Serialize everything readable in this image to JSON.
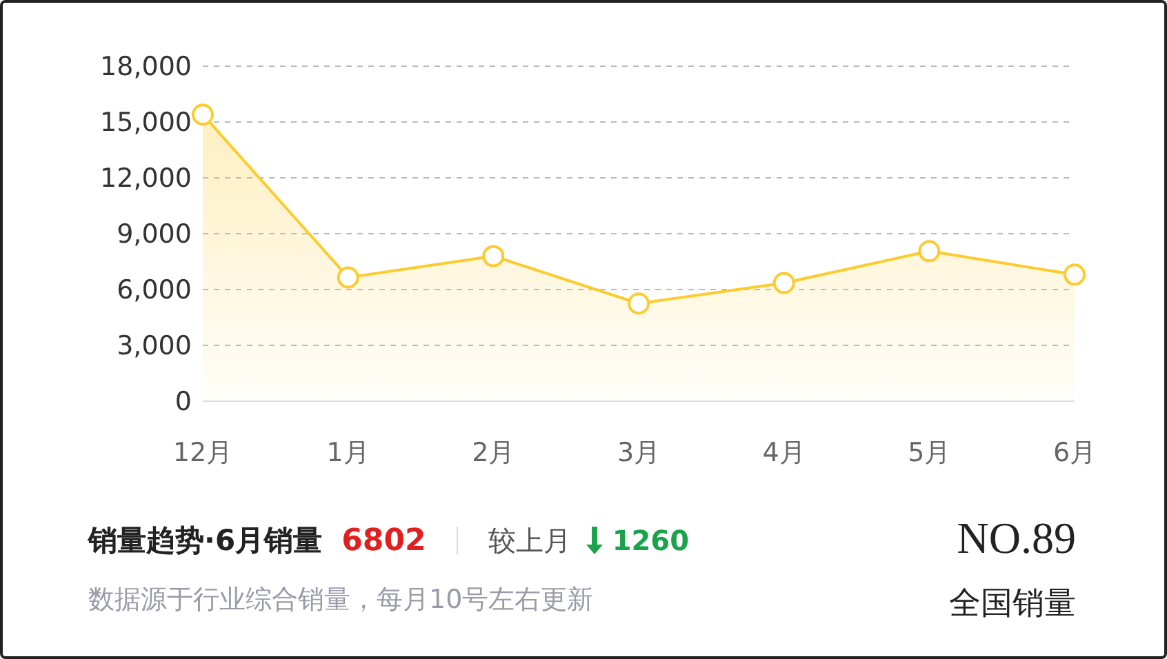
{
  "chart_data": {
    "type": "area",
    "categories": [
      "12月",
      "1月",
      "2月",
      "3月",
      "4月",
      "5月",
      "6月"
    ],
    "series": [
      {
        "color": "#fccb2e",
        "values": [
          15400,
          6650,
          7800,
          5250,
          6350,
          8062,
          6802
        ]
      }
    ],
    "ylim": [
      0,
      18000
    ],
    "yticks": [
      {
        "value": 0,
        "label": "0"
      },
      {
        "value": 3000,
        "label": "3,000"
      },
      {
        "value": 6000,
        "label": "6,000"
      },
      {
        "value": 9000,
        "label": "9,000"
      },
      {
        "value": 12000,
        "label": "12,000"
      },
      {
        "value": 15000,
        "label": "15,000"
      },
      {
        "value": 18000,
        "label": "18,000"
      }
    ],
    "grid": "y",
    "marker": "circle",
    "line_style": "solid",
    "legend": false,
    "annotations": [
      "销量趋势·6月销量",
      "6802",
      "较上月",
      "1260",
      "数据源于行业综合销量，每月10号左右更新",
      "NO.89",
      "全国销量"
    ]
  }
}
